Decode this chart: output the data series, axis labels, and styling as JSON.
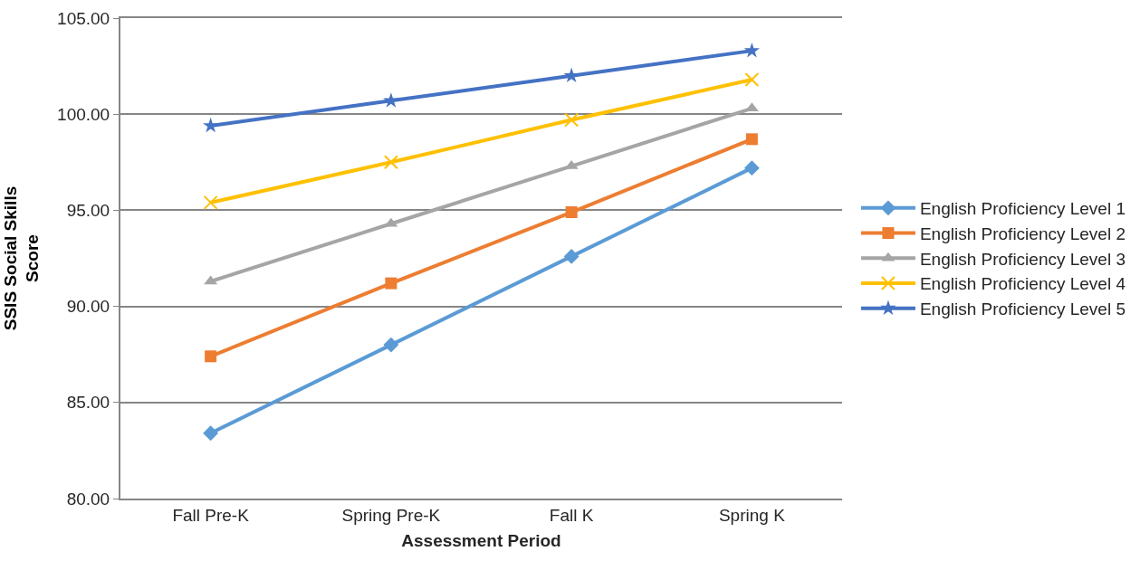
{
  "chart_data": {
    "type": "line",
    "xlabel": "Assessment Period",
    "ylabel": "SSIS Social Skills Score",
    "categories": [
      "Fall Pre-K",
      "Spring Pre-K",
      "Fall K",
      "Spring K"
    ],
    "ylim": [
      80,
      105
    ],
    "yticks": [
      {
        "value": 80,
        "label": "80.00"
      },
      {
        "value": 85,
        "label": "85.00"
      },
      {
        "value": 90,
        "label": "90.00"
      },
      {
        "value": 95,
        "label": "95.00"
      },
      {
        "value": 100,
        "label": "100.00"
      },
      {
        "value": 105,
        "label": "105.00"
      }
    ],
    "grid": "y",
    "legend": "right",
    "line_style": "solid",
    "series": [
      {
        "name": "English Proficiency Level 1",
        "color": "#5b9bd5",
        "marker": "diamond",
        "values": [
          83.4,
          88.0,
          92.6,
          97.2
        ]
      },
      {
        "name": "English Proficiency Level 2",
        "color": "#ed7d31",
        "marker": "square",
        "values": [
          87.4,
          91.2,
          94.9,
          98.7
        ]
      },
      {
        "name": "English Proficiency Level 3",
        "color": "#a5a5a5",
        "marker": "triangle",
        "values": [
          91.3,
          94.3,
          97.3,
          100.3
        ]
      },
      {
        "name": "English Proficiency Level 4",
        "color": "#ffc000",
        "marker": "cross",
        "values": [
          95.4,
          97.5,
          99.7,
          101.8
        ]
      },
      {
        "name": "English Proficiency Level 5",
        "color": "#4472c4",
        "marker": "star",
        "values": [
          99.4,
          100.7,
          102.0,
          103.3
        ]
      }
    ]
  }
}
